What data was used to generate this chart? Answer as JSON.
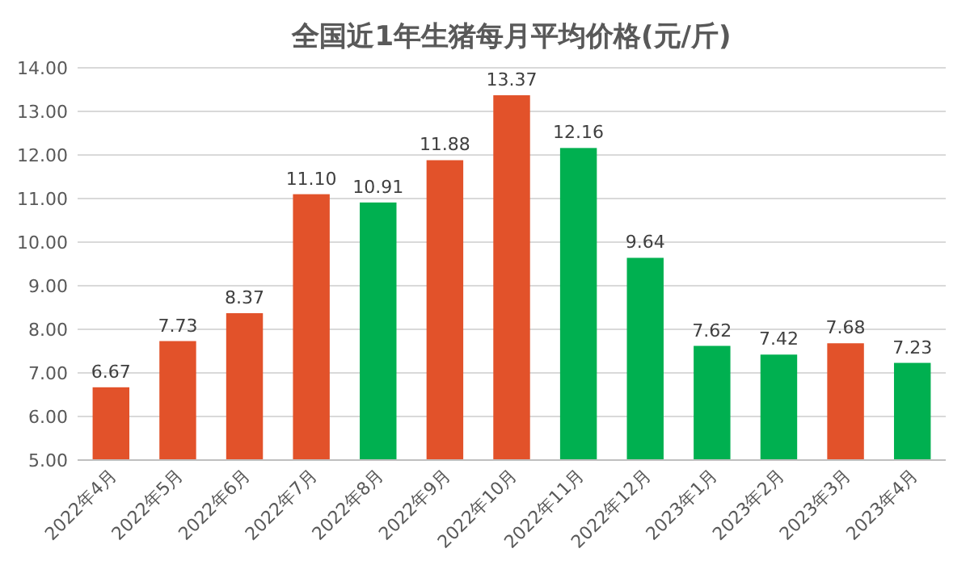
{
  "chart_data": {
    "type": "bar",
    "title": "全国近1年生猪每月平均价格(元/斤)",
    "categories": [
      "2022年4月",
      "2022年5月",
      "2022年6月",
      "2022年7月",
      "2022年8月",
      "2022年9月",
      "2022年10月",
      "2022年11月",
      "2022年12月",
      "2023年1月",
      "2023年2月",
      "2023年3月",
      "2023年4月"
    ],
    "values": [
      6.67,
      7.73,
      8.37,
      11.1,
      10.91,
      11.88,
      13.37,
      12.16,
      9.64,
      7.62,
      7.42,
      7.68,
      7.23
    ],
    "value_labels": [
      "6.67",
      "7.73",
      "8.37",
      "11.10",
      "10.91",
      "11.88",
      "13.37",
      "12.16",
      "9.64",
      "7.62",
      "7.42",
      "7.68",
      "7.23"
    ],
    "colors": [
      "#e2522a",
      "#e2522a",
      "#e2522a",
      "#e2522a",
      "#00b050",
      "#e2522a",
      "#e2522a",
      "#00b050",
      "#00b050",
      "#00b050",
      "#00b050",
      "#e2522a",
      "#00b050"
    ],
    "ylim": [
      5,
      14
    ],
    "yticks": [
      {
        "value": 5,
        "label": "5.00"
      },
      {
        "value": 6,
        "label": "6.00"
      },
      {
        "value": 7,
        "label": "7.00"
      },
      {
        "value": 8,
        "label": "8.00"
      },
      {
        "value": 9,
        "label": "9.00"
      },
      {
        "value": 10,
        "label": "10.00"
      },
      {
        "value": 11,
        "label": "11.00"
      },
      {
        "value": 12,
        "label": "12.00"
      },
      {
        "value": 13,
        "label": "13.00"
      },
      {
        "value": 14,
        "label": "14.00"
      }
    ],
    "grid": "y"
  }
}
